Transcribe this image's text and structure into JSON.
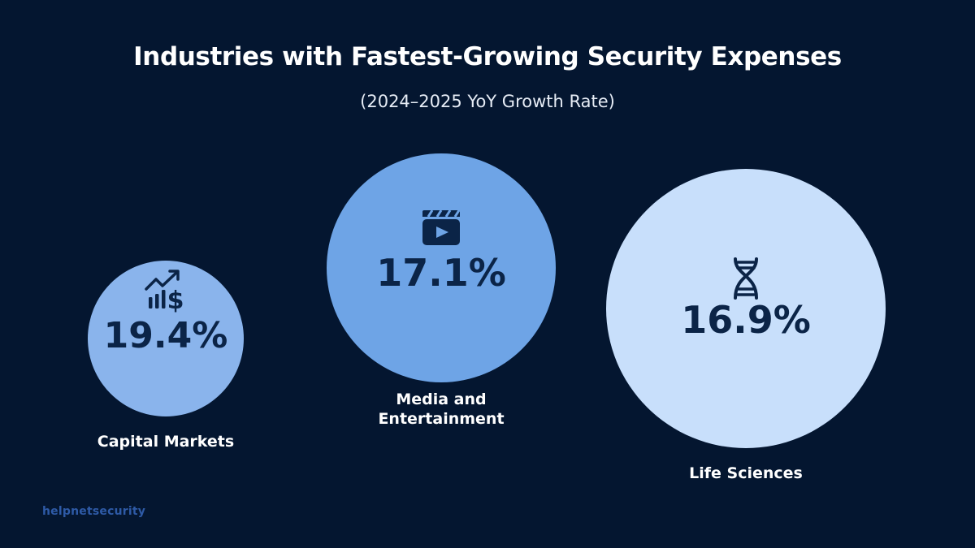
{
  "chart_data": {
    "type": "bubble",
    "title": "Industries with Fastest-Growing Security Expenses",
    "subtitle": "(2024–2025 YoY Growth Rate)",
    "categories": [
      "Capital Markets",
      "Media and Entertainment",
      "Life Sciences"
    ],
    "values": [
      19.4,
      17.1,
      16.9
    ],
    "value_labels": [
      "19.4%",
      "17.1%",
      "16.9%"
    ],
    "icons": [
      "chart-dollar-icon",
      "clapperboard-icon",
      "dna-icon"
    ],
    "colors": [
      "#8ab4ec",
      "#6ea4e6",
      "#c8dffb"
    ]
  },
  "footer": {
    "brand": "helpnetsecurity"
  }
}
